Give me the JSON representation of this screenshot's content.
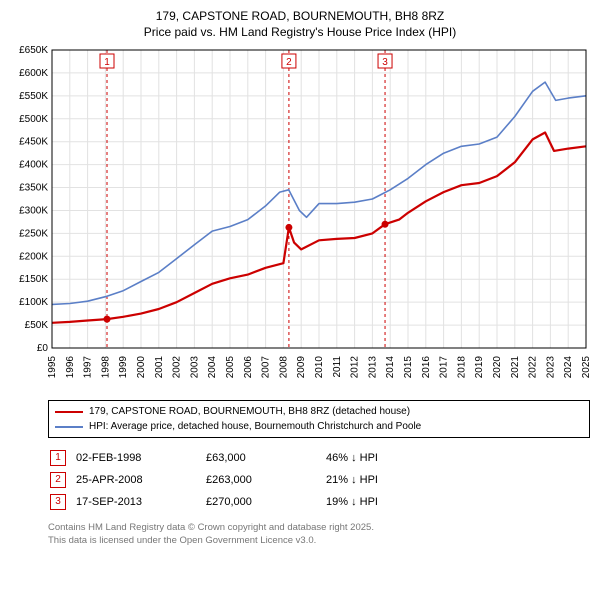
{
  "title_line1": "179, CAPSTONE ROAD, BOURNEMOUTH, BH8 8RZ",
  "title_line2": "Price paid vs. HM Land Registry's House Price Index (HPI)",
  "chart": {
    "type": "line",
    "background_color": "#ffffff",
    "grid_color": "#e2e2e2",
    "border_color": "#000000",
    "x": {
      "min": 1995,
      "max": 2025,
      "tick_step": 1
    },
    "y": {
      "min": 0,
      "max": 650000,
      "tick_step": 50000,
      "unit_prefix": "£",
      "unit_suffix": "K",
      "tick_divisor": 1000
    },
    "series": [
      {
        "id": "price_paid",
        "label": "179, CAPSTONE ROAD, BOURNEMOUTH, BH8 8RZ (detached house)",
        "color": "#cc0000",
        "width": 2.2,
        "points": [
          [
            1995.0,
            55000
          ],
          [
            1996.0,
            57000
          ],
          [
            1997.0,
            60000
          ],
          [
            1998.09,
            63000
          ],
          [
            1999.0,
            68000
          ],
          [
            2000.0,
            75000
          ],
          [
            2001.0,
            85000
          ],
          [
            2002.0,
            100000
          ],
          [
            2003.0,
            120000
          ],
          [
            2004.0,
            140000
          ],
          [
            2005.0,
            152000
          ],
          [
            2006.0,
            160000
          ],
          [
            2007.0,
            175000
          ],
          [
            2008.0,
            185000
          ],
          [
            2008.31,
            263000
          ],
          [
            2008.6,
            230000
          ],
          [
            2009.0,
            215000
          ],
          [
            2010.0,
            235000
          ],
          [
            2011.0,
            238000
          ],
          [
            2012.0,
            240000
          ],
          [
            2013.0,
            250000
          ],
          [
            2013.71,
            270000
          ],
          [
            2014.5,
            280000
          ],
          [
            2015.0,
            295000
          ],
          [
            2016.0,
            320000
          ],
          [
            2017.0,
            340000
          ],
          [
            2018.0,
            355000
          ],
          [
            2019.0,
            360000
          ],
          [
            2020.0,
            375000
          ],
          [
            2021.0,
            405000
          ],
          [
            2022.0,
            455000
          ],
          [
            2022.7,
            470000
          ],
          [
            2023.2,
            430000
          ],
          [
            2024.0,
            435000
          ],
          [
            2025.0,
            440000
          ]
        ],
        "markers": [
          {
            "n": 1,
            "x": 1998.09,
            "y": 63000
          },
          {
            "n": 2,
            "x": 2008.31,
            "y": 263000
          },
          {
            "n": 3,
            "x": 2013.71,
            "y": 270000
          }
        ]
      },
      {
        "id": "hpi",
        "label": "HPI: Average price, detached house, Bournemouth Christchurch and Poole",
        "color": "#5b7fc7",
        "width": 1.6,
        "points": [
          [
            1995.0,
            95000
          ],
          [
            1996.0,
            97000
          ],
          [
            1997.0,
            102000
          ],
          [
            1998.0,
            112000
          ],
          [
            1999.0,
            125000
          ],
          [
            2000.0,
            145000
          ],
          [
            2001.0,
            165000
          ],
          [
            2002.0,
            195000
          ],
          [
            2003.0,
            225000
          ],
          [
            2004.0,
            255000
          ],
          [
            2005.0,
            265000
          ],
          [
            2006.0,
            280000
          ],
          [
            2007.0,
            310000
          ],
          [
            2007.8,
            340000
          ],
          [
            2008.3,
            345000
          ],
          [
            2008.9,
            300000
          ],
          [
            2009.3,
            285000
          ],
          [
            2010.0,
            315000
          ],
          [
            2011.0,
            315000
          ],
          [
            2012.0,
            318000
          ],
          [
            2013.0,
            325000
          ],
          [
            2014.0,
            345000
          ],
          [
            2015.0,
            370000
          ],
          [
            2016.0,
            400000
          ],
          [
            2017.0,
            425000
          ],
          [
            2018.0,
            440000
          ],
          [
            2019.0,
            445000
          ],
          [
            2020.0,
            460000
          ],
          [
            2021.0,
            505000
          ],
          [
            2022.0,
            560000
          ],
          [
            2022.7,
            580000
          ],
          [
            2023.3,
            540000
          ],
          [
            2024.0,
            545000
          ],
          [
            2025.0,
            550000
          ]
        ]
      }
    ],
    "sale_lines": {
      "color": "#cc0000",
      "dash": "3 3",
      "width": 1
    }
  },
  "legend": {
    "items": [
      {
        "color": "#cc0000",
        "width": 2.5,
        "text": "179, CAPSTONE ROAD, BOURNEMOUTH, BH8 8RZ (detached house)"
      },
      {
        "color": "#5b7fc7",
        "width": 2,
        "text": "HPI: Average price, detached house, Bournemouth Christchurch and Poole"
      }
    ]
  },
  "sales": [
    {
      "n": "1",
      "date": "02-FEB-1998",
      "price": "£63,000",
      "delta": "46% ↓ HPI"
    },
    {
      "n": "2",
      "date": "25-APR-2008",
      "price": "£263,000",
      "delta": "21% ↓ HPI"
    },
    {
      "n": "3",
      "date": "17-SEP-2013",
      "price": "£270,000",
      "delta": "19% ↓ HPI"
    }
  ],
  "attribution_line1": "Contains HM Land Registry data © Crown copyright and database right 2025.",
  "attribution_line2": "This data is licensed under the Open Government Licence v3.0."
}
